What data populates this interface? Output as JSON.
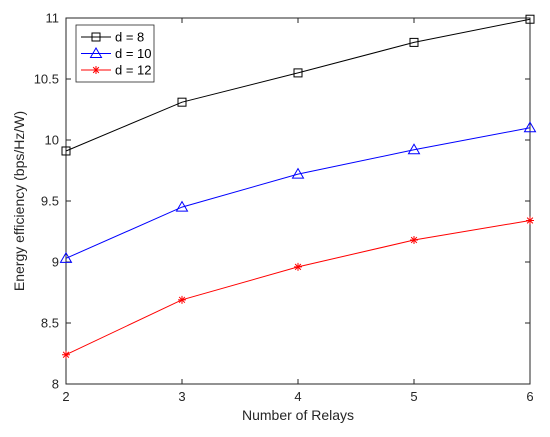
{
  "chart_data": {
    "type": "line",
    "title": "",
    "xlabel": "Number of Relays",
    "ylabel": "Energy efficiency (bps/Hz/W)",
    "x": [
      2,
      3,
      4,
      5,
      6
    ],
    "xlim": [
      2,
      6
    ],
    "ylim": [
      8,
      11
    ],
    "x_ticks": [
      "2",
      "3",
      "4",
      "5",
      "6"
    ],
    "y_ticks": [
      "8",
      "8.5",
      "9",
      "9.5",
      "10",
      "10.5",
      "11"
    ],
    "y_tick_values": [
      8,
      8.5,
      9,
      9.5,
      10,
      10.5,
      11
    ],
    "grid": false,
    "legend_position": "top-left",
    "series": [
      {
        "name": "d = 8",
        "values": [
          9.91,
          10.31,
          10.55,
          10.8,
          10.99
        ],
        "color": "#000000",
        "marker": "square"
      },
      {
        "name": "d = 10",
        "values": [
          9.03,
          9.45,
          9.72,
          9.92,
          10.1
        ],
        "color": "#0000ff",
        "marker": "triangle"
      },
      {
        "name": "d = 12",
        "values": [
          8.24,
          8.69,
          8.96,
          9.18,
          9.34
        ],
        "color": "#ff0000",
        "marker": "asterisk"
      }
    ]
  }
}
